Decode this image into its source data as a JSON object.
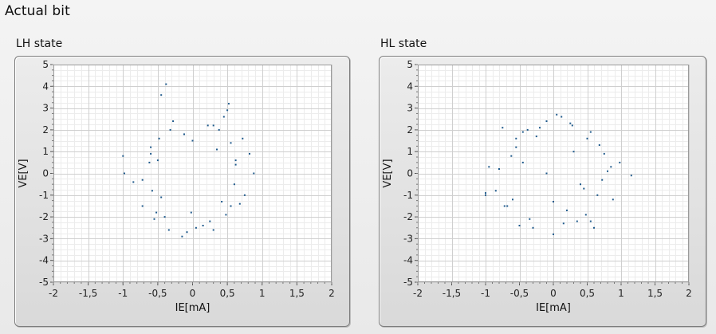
{
  "window": {
    "title": "Actual bit"
  },
  "chart_data": [
    {
      "type": "scatter",
      "title": "LH state",
      "xlabel": "IE[mA]",
      "ylabel": "VE[V]",
      "xlim": [
        -2,
        2
      ],
      "ylim": [
        -5,
        5
      ],
      "x_ticks": [
        -2,
        -1.5,
        -1,
        -0.5,
        0,
        0.5,
        1,
        1.5,
        2
      ],
      "x_tick_labels": [
        "-2",
        "-1,5",
        "-1",
        "-0,5",
        "0",
        "0,5",
        "1",
        "1,5",
        "2"
      ],
      "y_ticks": [
        5,
        4,
        3,
        2,
        1,
        0,
        -1,
        -2,
        -3,
        -4,
        -5
      ],
      "y_tick_labels": [
        "5",
        "4",
        "3",
        "2",
        "1",
        "0",
        "-1",
        "-2",
        "-3",
        "-4",
        "-5"
      ],
      "grid": true,
      "marker_color": "#1f5a8c",
      "points": {
        "x": [
          -0.38,
          -0.45,
          0.52,
          -0.98,
          -1.0,
          0.88,
          0.82,
          0.62,
          0.5,
          0.45,
          0.72,
          0.22,
          -0.08,
          -0.15,
          0.05,
          -0.28,
          -0.32,
          0.38,
          -0.62,
          -0.5,
          -0.45,
          0.42,
          0.55,
          -0.02,
          0.0,
          -0.12,
          -0.72,
          -0.55,
          0.6,
          0.15,
          -0.6,
          0.35,
          -0.72,
          0.75,
          -0.4,
          0.25,
          -0.6,
          0.3,
          -0.85,
          0.68,
          -0.48,
          0.48,
          -0.58,
          0.62,
          -0.34,
          0.3,
          -0.52,
          0.55
        ],
        "y": [
          4.1,
          3.6,
          3.2,
          0.0,
          0.8,
          0.0,
          0.9,
          0.6,
          2.9,
          2.6,
          1.6,
          2.2,
          -2.7,
          -2.9,
          -2.5,
          2.4,
          2.0,
          2.0,
          0.5,
          0.6,
          -1.1,
          -1.3,
          -1.5,
          -1.8,
          1.5,
          1.8,
          -0.3,
          -2.1,
          -0.5,
          -2.4,
          1.2,
          1.1,
          -1.5,
          -1.0,
          -2.0,
          -2.2,
          0.9,
          2.2,
          -0.4,
          -1.4,
          1.6,
          -1.9,
          -0.8,
          0.4,
          -2.6,
          -2.6,
          -1.8,
          1.4
        ]
      }
    },
    {
      "type": "scatter",
      "title": "HL state",
      "xlabel": "IE[mA]",
      "ylabel": "VE[V]",
      "xlim": [
        -2,
        2
      ],
      "ylim": [
        -5,
        5
      ],
      "x_ticks": [
        -2,
        -1.5,
        -1,
        -0.5,
        0,
        0.5,
        1,
        1.5,
        2
      ],
      "x_tick_labels": [
        "-2",
        "-1,5",
        "-1",
        "-0,5",
        "0",
        "0,5",
        "1",
        "1,5",
        "2"
      ],
      "y_ticks": [
        5,
        4,
        3,
        2,
        1,
        0,
        -1,
        -2,
        -3,
        -4,
        -5
      ],
      "y_tick_labels": [
        "5",
        "4",
        "3",
        "2",
        "1",
        "0",
        "-1",
        "-2",
        "-3",
        "-4",
        "-5"
      ],
      "grid": true,
      "marker_color": "#1f5a8c",
      "points": {
        "x": [
          -0.75,
          -0.95,
          -1.0,
          -1.0,
          1.15,
          0.98,
          0.88,
          0.85,
          0.05,
          0.12,
          -0.1,
          0.25,
          0.28,
          -0.38,
          -0.45,
          -0.3,
          0.6,
          0.55,
          -0.72,
          -0.68,
          -0.55,
          0.5,
          0.48,
          0.35,
          -0.35,
          0.0,
          0.68,
          -0.55,
          -0.62,
          0.65,
          -0.85,
          0.75,
          0.4,
          -0.25,
          0.2,
          -0.5,
          0.55,
          -0.6,
          0.72,
          -0.2,
          0.15,
          -0.45,
          0.45,
          0.8,
          -0.8,
          0.3,
          0.0,
          -0.1
        ],
        "y": [
          2.1,
          0.3,
          -0.9,
          -1.0,
          -0.1,
          0.5,
          -1.2,
          0.3,
          2.7,
          2.6,
          2.4,
          2.3,
          2.2,
          2.0,
          1.9,
          -2.5,
          -2.5,
          -2.2,
          -1.5,
          -1.5,
          1.6,
          1.6,
          -1.9,
          -2.2,
          -2.1,
          -2.8,
          1.3,
          1.2,
          0.8,
          -1.0,
          -0.8,
          0.9,
          -0.5,
          1.7,
          -1.7,
          -2.4,
          1.9,
          -1.2,
          -0.3,
          2.1,
          -2.3,
          0.5,
          -0.7,
          0.1,
          0.2,
          1.0,
          -1.3,
          0.0
        ]
      }
    }
  ]
}
